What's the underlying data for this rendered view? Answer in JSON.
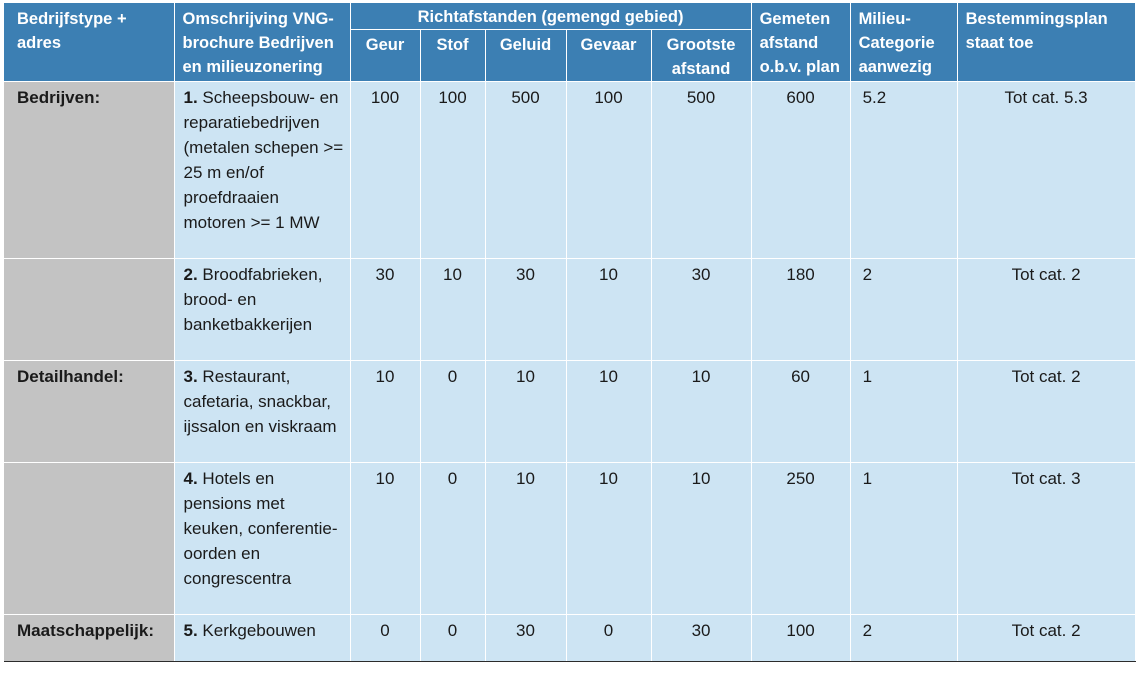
{
  "headers": {
    "type": "Bedrijfstype + adres",
    "description": "Omschrijving VNG-brochure Bedrijven en milieuzonering",
    "richtafstanden": "Richtafstanden (gemengd gebied)",
    "geur": "Geur",
    "stof": "Stof",
    "geluid": "Geluid",
    "gevaar": "Gevaar",
    "grootste": "Grootste afstand",
    "gemeten": "Gemeten afstand o.b.v. plan",
    "milieu": "Milieu-Categorie aanwezig",
    "bestemmingsplan": "Bestemmingsplan staat toe"
  },
  "rows": [
    {
      "type": "Bedrijven:",
      "number": "1.",
      "description": "Scheepsbouw- en reparatiebedrijven (metalen schepen >= 25 m en/of proefdraaien motoren >= 1 MW",
      "geur": "100",
      "stof": "100",
      "geluid": "500",
      "gevaar": "100",
      "grootste": "500",
      "gemeten": "600",
      "categorie": "5.2",
      "toegestaan": "Tot cat. 5.3"
    },
    {
      "type": "",
      "number": "2.",
      "description": "Broodfabrieken, brood- en banketbakkerijen",
      "geur": "30",
      "stof": "10",
      "geluid": "30",
      "gevaar": "10",
      "grootste": "30",
      "gemeten": "180",
      "categorie": "2",
      "toegestaan": "Tot cat. 2"
    },
    {
      "type": "Detailhandel:",
      "number": "3.",
      "description": "Restaurant, cafetaria, snackbar, ijssalon en viskraam",
      "geur": "10",
      "stof": "0",
      "geluid": "10",
      "gevaar": "10",
      "grootste": "10",
      "gemeten": "60",
      "categorie": "1",
      "toegestaan": "Tot cat. 2"
    },
    {
      "type": "",
      "number": "4.",
      "description": "Hotels en pensions met keuken, conferentie-oorden en congrescentra",
      "geur": "10",
      "stof": "0",
      "geluid": "10",
      "gevaar": "10",
      "grootste": "10",
      "gemeten": "250",
      "categorie": "1",
      "toegestaan": "Tot cat. 3"
    },
    {
      "type": "Maatschappelijk:",
      "number": "5.",
      "description": "Kerkgebouwen",
      "geur": "0",
      "stof": "0",
      "geluid": "30",
      "gevaar": "0",
      "grootste": "30",
      "gemeten": "100",
      "categorie": "2",
      "toegestaan": "Tot cat. 2"
    }
  ],
  "colors": {
    "header_bg": "#3c7fb3",
    "cell_bg": "#cde4f3",
    "type_bg": "#c3c3c3"
  }
}
